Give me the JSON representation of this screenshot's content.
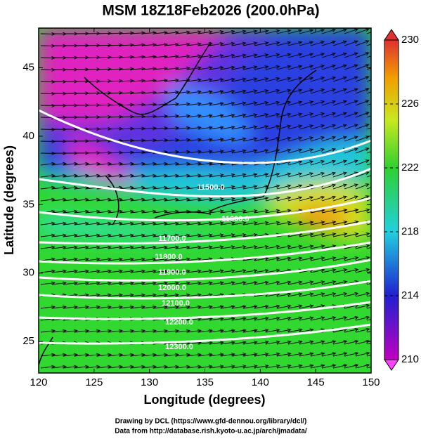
{
  "title": "MSM 18Z18Feb2026 (200.0hPa)",
  "xlabel": "Longitude (degrees)",
  "ylabel": "Latitude  (degrees)",
  "xlim": [
    120,
    150
  ],
  "xticks": [
    120,
    125,
    130,
    135,
    140,
    145,
    150
  ],
  "ylim": [
    22.7,
    47.9
  ],
  "yticks": [
    25,
    30,
    35,
    40,
    45
  ],
  "colorbar": {
    "lim": [
      210,
      230
    ],
    "ticks": [
      210,
      214,
      218,
      222,
      226,
      230
    ]
  },
  "contour_labels": [
    "11500.0",
    "11600.0",
    "11700.0",
    "11800.0",
    "11900.0",
    "12000.0",
    "12100.0",
    "12200.0",
    "12300.0"
  ],
  "footer": [
    "Drawing by DCL (https://www.gfd-dennou.org/library/dcl/)",
    "Data from http://database.rish.kyoto-u.ac.jp/arch/jmadata/"
  ]
}
